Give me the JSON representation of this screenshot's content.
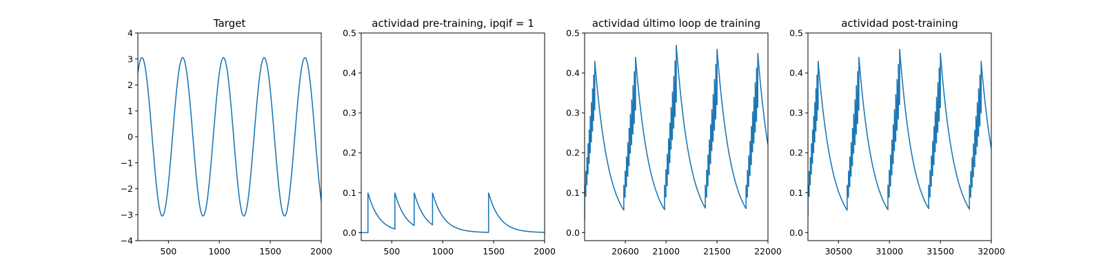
{
  "chart_data": [
    {
      "type": "line",
      "title": "Target",
      "xlim": [
        200,
        2000
      ],
      "ylim": [
        -4,
        4
      ],
      "xticks": [
        500,
        1000,
        1500,
        2000
      ],
      "yticks": [
        -4,
        -3,
        -2,
        -1,
        0,
        1,
        2,
        3,
        4
      ],
      "ytick_labels": [
        "−4",
        "−3",
        "−2",
        "−1",
        "0",
        "1",
        "2",
        "3",
        "4"
      ],
      "series": [
        {
          "kind": "sine",
          "amplitude": 3.05,
          "period": 400,
          "peak_x": [
            240,
            640,
            1040,
            1440,
            1840
          ],
          "trough_x": [
            440,
            840,
            1240,
            1640
          ],
          "y_at_start": 2.1,
          "y_at_end": -2.15
        }
      ]
    },
    {
      "type": "line",
      "title": "actividad pre-training, ipqif = 1",
      "xlim": [
        200,
        2000
      ],
      "ylim": [
        -0.02,
        0.5
      ],
      "xticks": [
        500,
        1000,
        1500,
        2000
      ],
      "yticks": [
        0.0,
        0.1,
        0.2,
        0.3,
        0.4,
        0.5
      ],
      "ytick_labels": [
        "0.0",
        "0.1",
        "0.2",
        "0.3",
        "0.4",
        "0.5"
      ],
      "series": [
        {
          "kind": "spike_decay",
          "base": 0.0,
          "decay_tau": 110,
          "spikes": [
            [
              265,
              0.1
            ],
            [
              530,
              0.1
            ],
            [
              720,
              0.1
            ],
            [
              900,
              0.1
            ],
            [
              1450,
              0.1
            ]
          ]
        }
      ]
    },
    {
      "type": "line",
      "title": "actividad último loop de training",
      "xlim": [
        20200,
        22000
      ],
      "ylim": [
        -0.02,
        0.5
      ],
      "xticks": [
        20600,
        21000,
        21500,
        22000
      ],
      "yticks": [
        0.0,
        0.1,
        0.2,
        0.3,
        0.4,
        0.5
      ],
      "ytick_labels": [
        "0.0",
        "0.1",
        "0.2",
        "0.3",
        "0.4",
        "0.5"
      ],
      "series": [
        {
          "kind": "bursts",
          "start_y": 0.03,
          "decay_tau": 140,
          "burst_starts": [
            20200,
            20585,
            20985,
            21385,
            21785
          ],
          "burst_peak_x": [
            20300,
            20700,
            21100,
            21500,
            21900
          ],
          "peaks": [
            0.43,
            0.44,
            0.47,
            0.46,
            0.45
          ],
          "trough": 0.033,
          "end_y": 0.2
        }
      ]
    },
    {
      "type": "line",
      "title": "actividad post-training",
      "xlim": [
        30200,
        32000
      ],
      "ylim": [
        -0.02,
        0.5
      ],
      "xticks": [
        30500,
        31000,
        31500,
        32000
      ],
      "yticks": [
        0.0,
        0.1,
        0.2,
        0.3,
        0.4,
        0.5
      ],
      "ytick_labels": [
        "0.0",
        "0.1",
        "0.2",
        "0.3",
        "0.4",
        "0.5"
      ],
      "series": [
        {
          "kind": "bursts",
          "start_y": 0.04,
          "decay_tau": 140,
          "burst_starts": [
            30200,
            30585,
            30985,
            31385,
            31785
          ],
          "burst_peak_x": [
            30300,
            30700,
            31100,
            31500,
            31900
          ],
          "peaks": [
            0.43,
            0.44,
            0.46,
            0.45,
            0.43
          ],
          "trough": 0.033,
          "end_y": 0.19
        }
      ]
    }
  ],
  "style": {
    "line_color": "#1f77b4",
    "axis_color": "#000000"
  }
}
